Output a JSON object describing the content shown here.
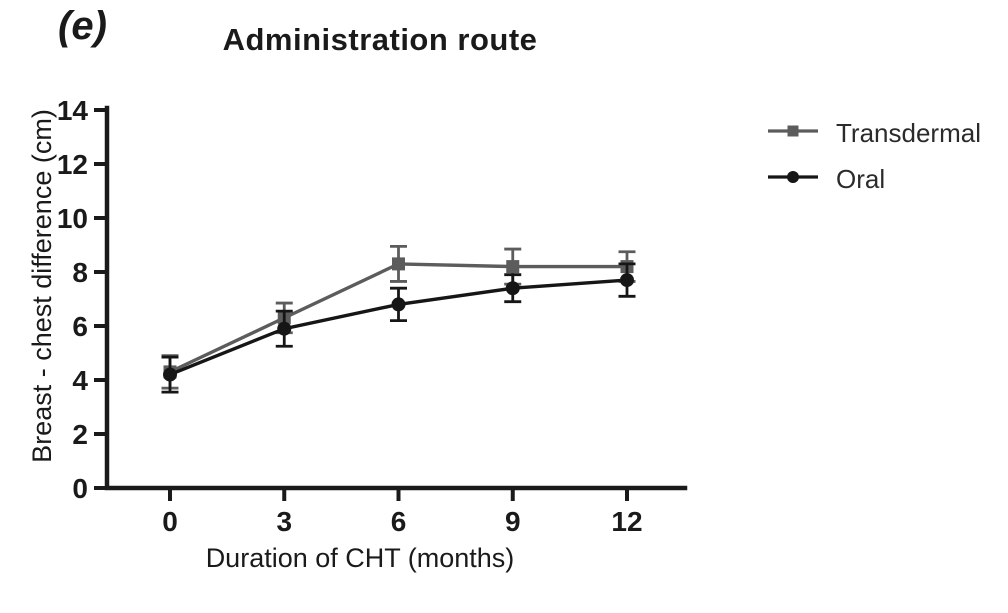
{
  "panel_label": "(e)",
  "chart_data": {
    "type": "line",
    "title": "Administration route",
    "xlabel": "Duration of CHT (months)",
    "ylabel": "Breast - chest difference (cm)",
    "x": [
      0,
      3,
      6,
      9,
      12
    ],
    "x_ticks": [
      "0",
      "3",
      "6",
      "9",
      "12"
    ],
    "y_ticks": [
      "0",
      "2",
      "4",
      "6",
      "8",
      "10",
      "12",
      "14"
    ],
    "ylim": [
      0,
      14
    ],
    "grid": false,
    "legend_position": "right",
    "series": [
      {
        "name": "Transdermal",
        "color": "#5c5c5c",
        "marker": "square",
        "values": [
          4.3,
          6.3,
          8.3,
          8.2,
          8.2
        ],
        "errors": [
          0.6,
          0.55,
          0.65,
          0.65,
          0.55
        ]
      },
      {
        "name": "Oral",
        "color": "#161616",
        "marker": "circle",
        "values": [
          4.2,
          5.9,
          6.8,
          7.4,
          7.7
        ],
        "errors": [
          0.65,
          0.65,
          0.6,
          0.5,
          0.6
        ]
      }
    ]
  }
}
